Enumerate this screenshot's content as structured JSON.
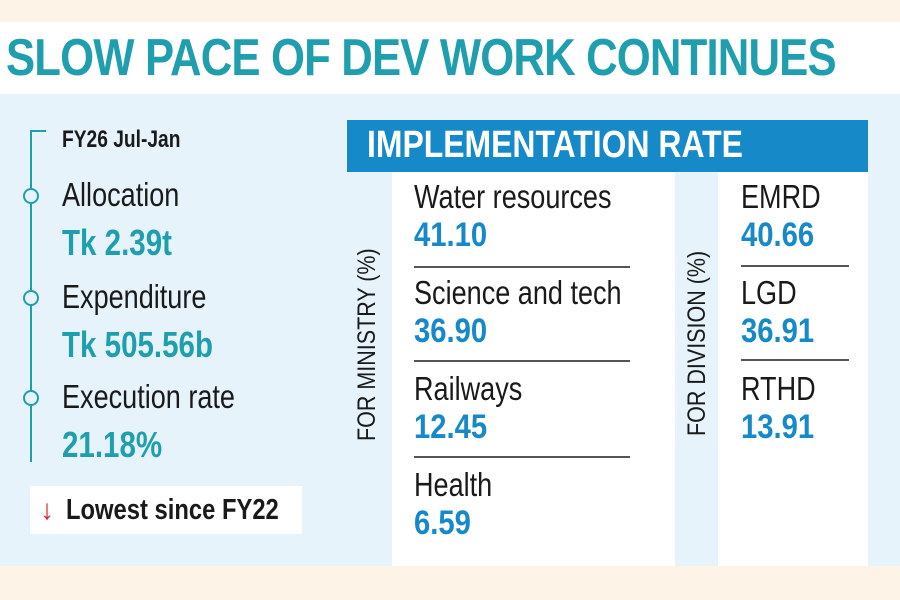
{
  "title": "SLOW PACE OF DEV WORK CONTINUES",
  "summary": {
    "period": "FY26 Jul-Jan",
    "items": [
      {
        "label": "Allocation",
        "value": "Tk 2.39t"
      },
      {
        "label": "Expenditure",
        "value": "Tk 505.56b"
      },
      {
        "label": "Execution rate",
        "value": "21.18%"
      }
    ],
    "note_arrow": "↓",
    "note": "Lowest since FY22",
    "colors": {
      "accent": "#1f9fae",
      "arrow": "#d9262b"
    }
  },
  "implementation": {
    "heading": "IMPLEMENTATION RATE",
    "ministry_label": "FOR MINISTRY (%)",
    "division_label": "FOR DIVISION (%)",
    "ministries": [
      {
        "name": "Water resources",
        "rate": "41.10"
      },
      {
        "name": "Science and tech",
        "rate": "36.90"
      },
      {
        "name": "Railways",
        "rate": "12.45"
      },
      {
        "name": "Health",
        "rate": "6.59"
      }
    ],
    "divisions": [
      {
        "name": "EMRD",
        "rate": "40.66"
      },
      {
        "name": "LGD",
        "rate": "36.91"
      },
      {
        "name": "RTHD",
        "rate": "13.91"
      }
    ],
    "colors": {
      "header": "#1689c9",
      "value": "#1689c9"
    }
  }
}
